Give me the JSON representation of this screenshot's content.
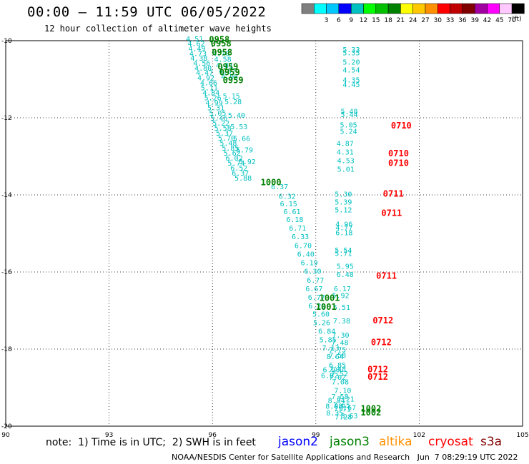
{
  "header": {
    "title": "00:00 – 11:59 UTC 06/05/2022",
    "subtitle": "12 hour collection of altimeter wave heights"
  },
  "color_legend": {
    "unit": "(ft)",
    "swatches": [
      {
        "color": "#7f7f7f",
        "label": ""
      },
      {
        "color": "#00ffff",
        "label": "3"
      },
      {
        "color": "#00c8ff",
        "label": "6"
      },
      {
        "color": "#0000ff",
        "label": "9"
      },
      {
        "color": "#00c0c0",
        "label": "12"
      },
      {
        "color": "#00ff00",
        "label": "15"
      },
      {
        "color": "#00c000",
        "label": "18"
      },
      {
        "color": "#008000",
        "label": "21"
      },
      {
        "color": "#ffff00",
        "label": "24"
      },
      {
        "color": "#ffc800",
        "label": "27"
      },
      {
        "color": "#ff9000",
        "label": "30"
      },
      {
        "color": "#ff0000",
        "label": "33"
      },
      {
        "color": "#c00000",
        "label": "36"
      },
      {
        "color": "#800000",
        "label": "39"
      },
      {
        "color": "#a000a0",
        "label": "42"
      },
      {
        "color": "#ff00ff",
        "label": "45"
      },
      {
        "color": "#ffc8ff",
        "label": "70"
      },
      {
        "color": "#000000",
        "label": ""
      }
    ]
  },
  "chart_data": {
    "type": "scatter",
    "title": "00:00 – 11:59 UTC 06/05/2022",
    "subtitle": "12 hour collection of altimeter wave heights",
    "xlim": [
      90,
      105
    ],
    "ylim": [
      -20,
      -10
    ],
    "x_ticks": [
      "90",
      "93",
      "96",
      "99",
      "102",
      "105"
    ],
    "y_ticks": [
      "-10",
      "-12",
      "-14",
      "-16",
      "-18",
      "-20"
    ],
    "grid": true,
    "series": [
      {
        "name": "jason3",
        "color": "#00c0c0",
        "labels": [
          {
            "x": 97.7,
            "y": -13.85,
            "t": "6.37"
          },
          {
            "x": 97.92,
            "y": -14.1,
            "t": "6.32"
          },
          {
            "x": 97.96,
            "y": -14.3,
            "t": "6.15"
          },
          {
            "x": 98.06,
            "y": -14.5,
            "t": "6.61"
          },
          {
            "x": 98.14,
            "y": -14.7,
            "t": "6.18"
          },
          {
            "x": 98.22,
            "y": -14.93,
            "t": "6.71"
          },
          {
            "x": 98.3,
            "y": -15.15,
            "t": "6.33"
          },
          {
            "x": 98.38,
            "y": -15.38,
            "t": "6.70"
          },
          {
            "x": 98.46,
            "y": -15.6,
            "t": "6.40"
          },
          {
            "x": 98.56,
            "y": -15.82,
            "t": "6.19"
          },
          {
            "x": 98.66,
            "y": -16.05,
            "t": "6.30"
          },
          {
            "x": 98.74,
            "y": -16.28,
            "t": "6.77"
          },
          {
            "x": 98.7,
            "y": -16.5,
            "t": "6.67"
          },
          {
            "x": 98.77,
            "y": -16.72,
            "t": "6.77"
          },
          {
            "x": 98.78,
            "y": -16.94,
            "t": "6.29"
          },
          {
            "x": 98.9,
            "y": -17.16,
            "t": "5.60"
          },
          {
            "x": 98.92,
            "y": -17.38,
            "t": "5.26"
          },
          {
            "x": 99.07,
            "y": -17.6,
            "t": "6.84"
          },
          {
            "x": 99.1,
            "y": -17.82,
            "t": "5.85"
          },
          {
            "x": 99.18,
            "y": -18.04,
            "t": "7.13"
          },
          {
            "x": 99.31,
            "y": -18.26,
            "t": "8.64"
          },
          {
            "x": 99.38,
            "y": -18.48,
            "t": "6.85"
          },
          {
            "x": 99.44,
            "y": -18.7,
            "t": "7.52"
          },
          {
            "x": 99.46,
            "y": -18.92,
            "t": "7.08"
          },
          {
            "x": 99.53,
            "y": -19.14,
            "t": "7.10"
          },
          {
            "x": 99.62,
            "y": -19.36,
            "t": "7.21"
          },
          {
            "x": 99.67,
            "y": -19.58,
            "t": "6.67"
          },
          {
            "x": 99.72,
            "y": -19.8,
            "t": "8.63"
          },
          {
            "x": 99.62,
            "y": -13.4,
            "t": "5.01"
          },
          {
            "x": 99.62,
            "y": -13.18,
            "t": "4.53"
          },
          {
            "x": 99.6,
            "y": -12.95,
            "t": "4.31"
          },
          {
            "x": 99.6,
            "y": -12.73,
            "t": "4.87"
          },
          {
            "x": 99.7,
            "y": -12.42,
            "t": "5.24"
          },
          {
            "x": 99.7,
            "y": -12.25,
            "t": "5.05"
          },
          {
            "x": 99.72,
            "y": -11.98,
            "t": "5.44"
          },
          {
            "x": 99.72,
            "y": -11.9,
            "t": "5.48"
          },
          {
            "x": 99.78,
            "y": -11.2,
            "t": "4.45"
          },
          {
            "x": 99.78,
            "y": -11.08,
            "t": "4.35"
          },
          {
            "x": 99.78,
            "y": -10.82,
            "t": "4.54"
          },
          {
            "x": 99.78,
            "y": -10.62,
            "t": "5.20"
          },
          {
            "x": 99.78,
            "y": -10.38,
            "t": "5.35"
          },
          {
            "x": 99.78,
            "y": -10.3,
            "t": "5.33"
          },
          {
            "x": 99.55,
            "y": -14.05,
            "t": "5.30"
          },
          {
            "x": 99.55,
            "y": -14.25,
            "t": "5.39"
          },
          {
            "x": 99.55,
            "y": -14.45,
            "t": "5.12"
          },
          {
            "x": 99.57,
            "y": -14.82,
            "t": "4.96"
          },
          {
            "x": 99.57,
            "y": -14.92,
            "t": "4.77"
          },
          {
            "x": 99.57,
            "y": -15.05,
            "t": "6.18"
          },
          {
            "x": 99.55,
            "y": -15.5,
            "t": "5.54"
          },
          {
            "x": 99.55,
            "y": -15.58,
            "t": "5.71"
          },
          {
            "x": 99.6,
            "y": -15.92,
            "t": "5.95"
          },
          {
            "x": 99.6,
            "y": -16.13,
            "t": "6.48"
          },
          {
            "x": 99.52,
            "y": -16.5,
            "t": "6.17"
          },
          {
            "x": 99.47,
            "y": -16.68,
            "t": "5.92"
          },
          {
            "x": 99.5,
            "y": -16.98,
            "t": "5.51"
          },
          {
            "x": 99.5,
            "y": -17.33,
            "t": "7.38"
          },
          {
            "x": 99.47,
            "y": -17.7,
            "t": "7.30"
          },
          {
            "x": 99.45,
            "y": -17.9,
            "t": "7.48"
          },
          {
            "x": 99.38,
            "y": -18.08,
            "t": "7.75"
          },
          {
            "x": 99.38,
            "y": -18.22,
            "t": "7.58"
          },
          {
            "x": 99.38,
            "y": -18.58,
            "t": "7.48"
          },
          {
            "x": 99.38,
            "y": -18.8,
            "t": "7.02"
          },
          {
            "x": 99.45,
            "y": -19.3,
            "t": "7.58"
          },
          {
            "x": 99.5,
            "y": -19.52,
            "t": "7.65"
          },
          {
            "x": 99.52,
            "y": -19.62,
            "t": "7.71"
          },
          {
            "x": 99.55,
            "y": -19.82,
            "t": "7.28"
          },
          {
            "x": 99.2,
            "y": -18.6,
            "t": "6.90"
          },
          {
            "x": 99.15,
            "y": -18.75,
            "t": "6.82"
          },
          {
            "x": 99.35,
            "y": -19.4,
            "t": "8.84"
          },
          {
            "x": 99.28,
            "y": -19.55,
            "t": "8.08"
          },
          {
            "x": 99.3,
            "y": -19.72,
            "t": "8.35"
          }
        ]
      },
      {
        "name": "jason3-dense",
        "color": "#00c0c0",
        "labels": [
          {
            "x": 95.23,
            "y": -10.02,
            "t": "4.51"
          },
          {
            "x": 95.28,
            "y": -10.14,
            "t": "4.62"
          },
          {
            "x": 95.3,
            "y": -10.27,
            "t": "4.49"
          },
          {
            "x": 95.33,
            "y": -10.4,
            "t": "4.73"
          },
          {
            "x": 95.36,
            "y": -10.52,
            "t": "4.38"
          },
          {
            "x": 95.44,
            "y": -10.65,
            "t": "4.56"
          },
          {
            "x": 95.48,
            "y": -10.78,
            "t": "4.80"
          },
          {
            "x": 95.52,
            "y": -10.9,
            "t": "4.47"
          },
          {
            "x": 95.56,
            "y": -11.03,
            "t": "4.92"
          },
          {
            "x": 95.64,
            "y": -11.16,
            "t": "4.66"
          },
          {
            "x": 95.66,
            "y": -11.29,
            "t": "5.11"
          },
          {
            "x": 95.71,
            "y": -11.42,
            "t": "4.84"
          },
          {
            "x": 95.76,
            "y": -11.55,
            "t": "5.26"
          },
          {
            "x": 95.8,
            "y": -11.68,
            "t": "4.99"
          },
          {
            "x": 95.85,
            "y": -11.81,
            "t": "5.31"
          },
          {
            "x": 95.9,
            "y": -11.94,
            "t": "5.05"
          },
          {
            "x": 95.94,
            "y": -12.07,
            "t": "5.46"
          },
          {
            "x": 96.0,
            "y": -12.2,
            "t": "5.22"
          },
          {
            "x": 96.05,
            "y": -12.33,
            "t": "5.58"
          },
          {
            "x": 96.1,
            "y": -12.46,
            "t": "5.37"
          },
          {
            "x": 96.16,
            "y": -12.59,
            "t": "5.70"
          },
          {
            "x": 96.21,
            "y": -12.72,
            "t": "5.48"
          },
          {
            "x": 96.27,
            "y": -12.85,
            "t": "5.85"
          },
          {
            "x": 96.32,
            "y": -12.98,
            "t": "5.62"
          },
          {
            "x": 96.38,
            "y": -13.11,
            "t": "6.02"
          },
          {
            "x": 96.44,
            "y": -13.24,
            "t": "5.74"
          },
          {
            "x": 96.52,
            "y": -13.37,
            "t": "6.52"
          },
          {
            "x": 96.56,
            "y": -13.5,
            "t": "6.37"
          },
          {
            "x": 96.64,
            "y": -13.63,
            "t": "5.88"
          },
          {
            "x": 96.0,
            "y": -10.4,
            "t": "4.70"
          },
          {
            "x": 96.05,
            "y": -10.55,
            "t": "4.58"
          },
          {
            "x": 96.1,
            "y": -10.7,
            "t": "4.81"
          },
          {
            "x": 96.18,
            "y": -10.85,
            "t": "4.67"
          },
          {
            "x": 96.25,
            "y": -11.0,
            "t": "4.95"
          },
          {
            "x": 96.3,
            "y": -11.5,
            "t": "5.15"
          },
          {
            "x": 96.35,
            "y": -11.65,
            "t": "5.28"
          },
          {
            "x": 96.45,
            "y": -12.0,
            "t": "5.40"
          },
          {
            "x": 96.52,
            "y": -12.3,
            "t": "5.53"
          },
          {
            "x": 96.6,
            "y": -12.6,
            "t": "5.66"
          },
          {
            "x": 96.68,
            "y": -12.9,
            "t": "5.79"
          },
          {
            "x": 96.76,
            "y": -13.2,
            "t": "5.92"
          }
        ]
      },
      {
        "name": "jason3-time",
        "color": "#008000",
        "labels": [
          {
            "x": 95.9,
            "y": -10.05,
            "t": "0958"
          },
          {
            "x": 95.95,
            "y": -10.15,
            "t": "0958"
          },
          {
            "x": 95.98,
            "y": -10.38,
            "t": "0958"
          },
          {
            "x": 96.15,
            "y": -10.75,
            "t": "0959"
          },
          {
            "x": 96.2,
            "y": -10.9,
            "t": "0959"
          },
          {
            "x": 96.3,
            "y": -11.1,
            "t": "0959"
          },
          {
            "x": 97.4,
            "y": -13.75,
            "t": "1000"
          },
          {
            "x": 99.1,
            "y": -16.75,
            "t": "1001"
          },
          {
            "x": 99.0,
            "y": -16.98,
            "t": "1001"
          },
          {
            "x": 100.3,
            "y": -19.62,
            "t": "1002"
          },
          {
            "x": 100.3,
            "y": -19.72,
            "t": "1002"
          }
        ]
      },
      {
        "name": "cryosat-time",
        "color": "#ff0000",
        "labels": [
          {
            "x": 101.18,
            "y": -12.28,
            "t": "0710"
          },
          {
            "x": 101.1,
            "y": -13.0,
            "t": "0710"
          },
          {
            "x": 101.1,
            "y": -13.25,
            "t": "0710"
          },
          {
            "x": 100.95,
            "y": -14.05,
            "t": "0711"
          },
          {
            "x": 100.9,
            "y": -14.55,
            "t": "0711"
          },
          {
            "x": 100.75,
            "y": -16.18,
            "t": "0711"
          },
          {
            "x": 100.65,
            "y": -17.33,
            "t": "0712"
          },
          {
            "x": 100.6,
            "y": -17.9,
            "t": "0712"
          },
          {
            "x": 100.5,
            "y": -18.6,
            "t": "0712"
          },
          {
            "x": 100.5,
            "y": -18.8,
            "t": "0712"
          }
        ]
      }
    ]
  },
  "footer": {
    "note": "note:  1) Time is in UTC;  2) SWH is in feet",
    "satellites": [
      {
        "name": "jason2",
        "color": "#0000ff"
      },
      {
        "name": "jason3",
        "color": "#008000"
      },
      {
        "name": "altika",
        "color": "#ff9000"
      },
      {
        "name": "cryosat",
        "color": "#ff0000"
      },
      {
        "name": "s3a",
        "color": "#800000"
      }
    ],
    "credit": "NOAA/NESDIS Center for Satellite Applications and Research   Jun  7 08:29:19 UTC 2022"
  }
}
